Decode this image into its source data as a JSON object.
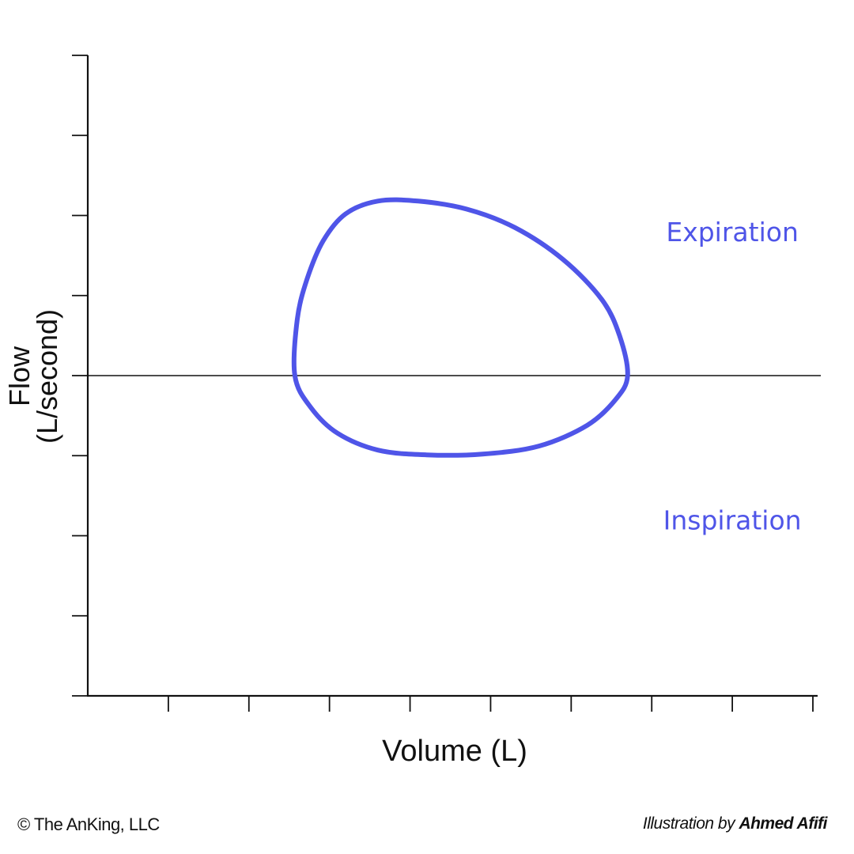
{
  "chart_data": {
    "type": "line",
    "title": "",
    "xlabel": "Volume (L)",
    "ylabel_line1": "Flow",
    "ylabel_line2": "(L/second)",
    "xlim": [
      0,
      9
    ],
    "ylim": [
      -4,
      4
    ],
    "x_ticks": [
      0,
      1,
      2,
      3,
      4,
      5,
      6,
      7,
      8,
      9
    ],
    "y_ticks": [
      -4,
      -3,
      -2,
      -1,
      0,
      1,
      2,
      3,
      4
    ],
    "tick_labels_shown": false,
    "grid": false,
    "annotations": [
      {
        "text": "Expiration",
        "x": 8.0,
        "y": 1.8
      },
      {
        "text": "Inspiration",
        "x": 8.0,
        "y": -1.8
      }
    ],
    "series": [
      {
        "color": "#4f55e8",
        "closed": true,
        "points": [
          [
            2.57,
            0.0
          ],
          [
            2.6,
            0.7
          ],
          [
            2.72,
            1.2
          ],
          [
            2.92,
            1.68
          ],
          [
            3.2,
            2.02
          ],
          [
            3.6,
            2.18
          ],
          [
            4.1,
            2.18
          ],
          [
            4.7,
            2.08
          ],
          [
            5.3,
            1.85
          ],
          [
            5.9,
            1.45
          ],
          [
            6.38,
            0.95
          ],
          [
            6.6,
            0.5
          ],
          [
            6.7,
            0.0
          ],
          [
            6.55,
            -0.3
          ],
          [
            6.2,
            -0.62
          ],
          [
            5.6,
            -0.88
          ],
          [
            4.9,
            -0.98
          ],
          [
            4.2,
            -0.99
          ],
          [
            3.6,
            -0.93
          ],
          [
            3.1,
            -0.72
          ],
          [
            2.77,
            -0.4
          ],
          [
            2.57,
            0.0
          ]
        ]
      }
    ],
    "zero_line": true
  },
  "footer": {
    "copyright": "© The AnKing, LLC",
    "credit_prefix": "Illustration by",
    "credit_author": "Ahmed Afifi"
  }
}
